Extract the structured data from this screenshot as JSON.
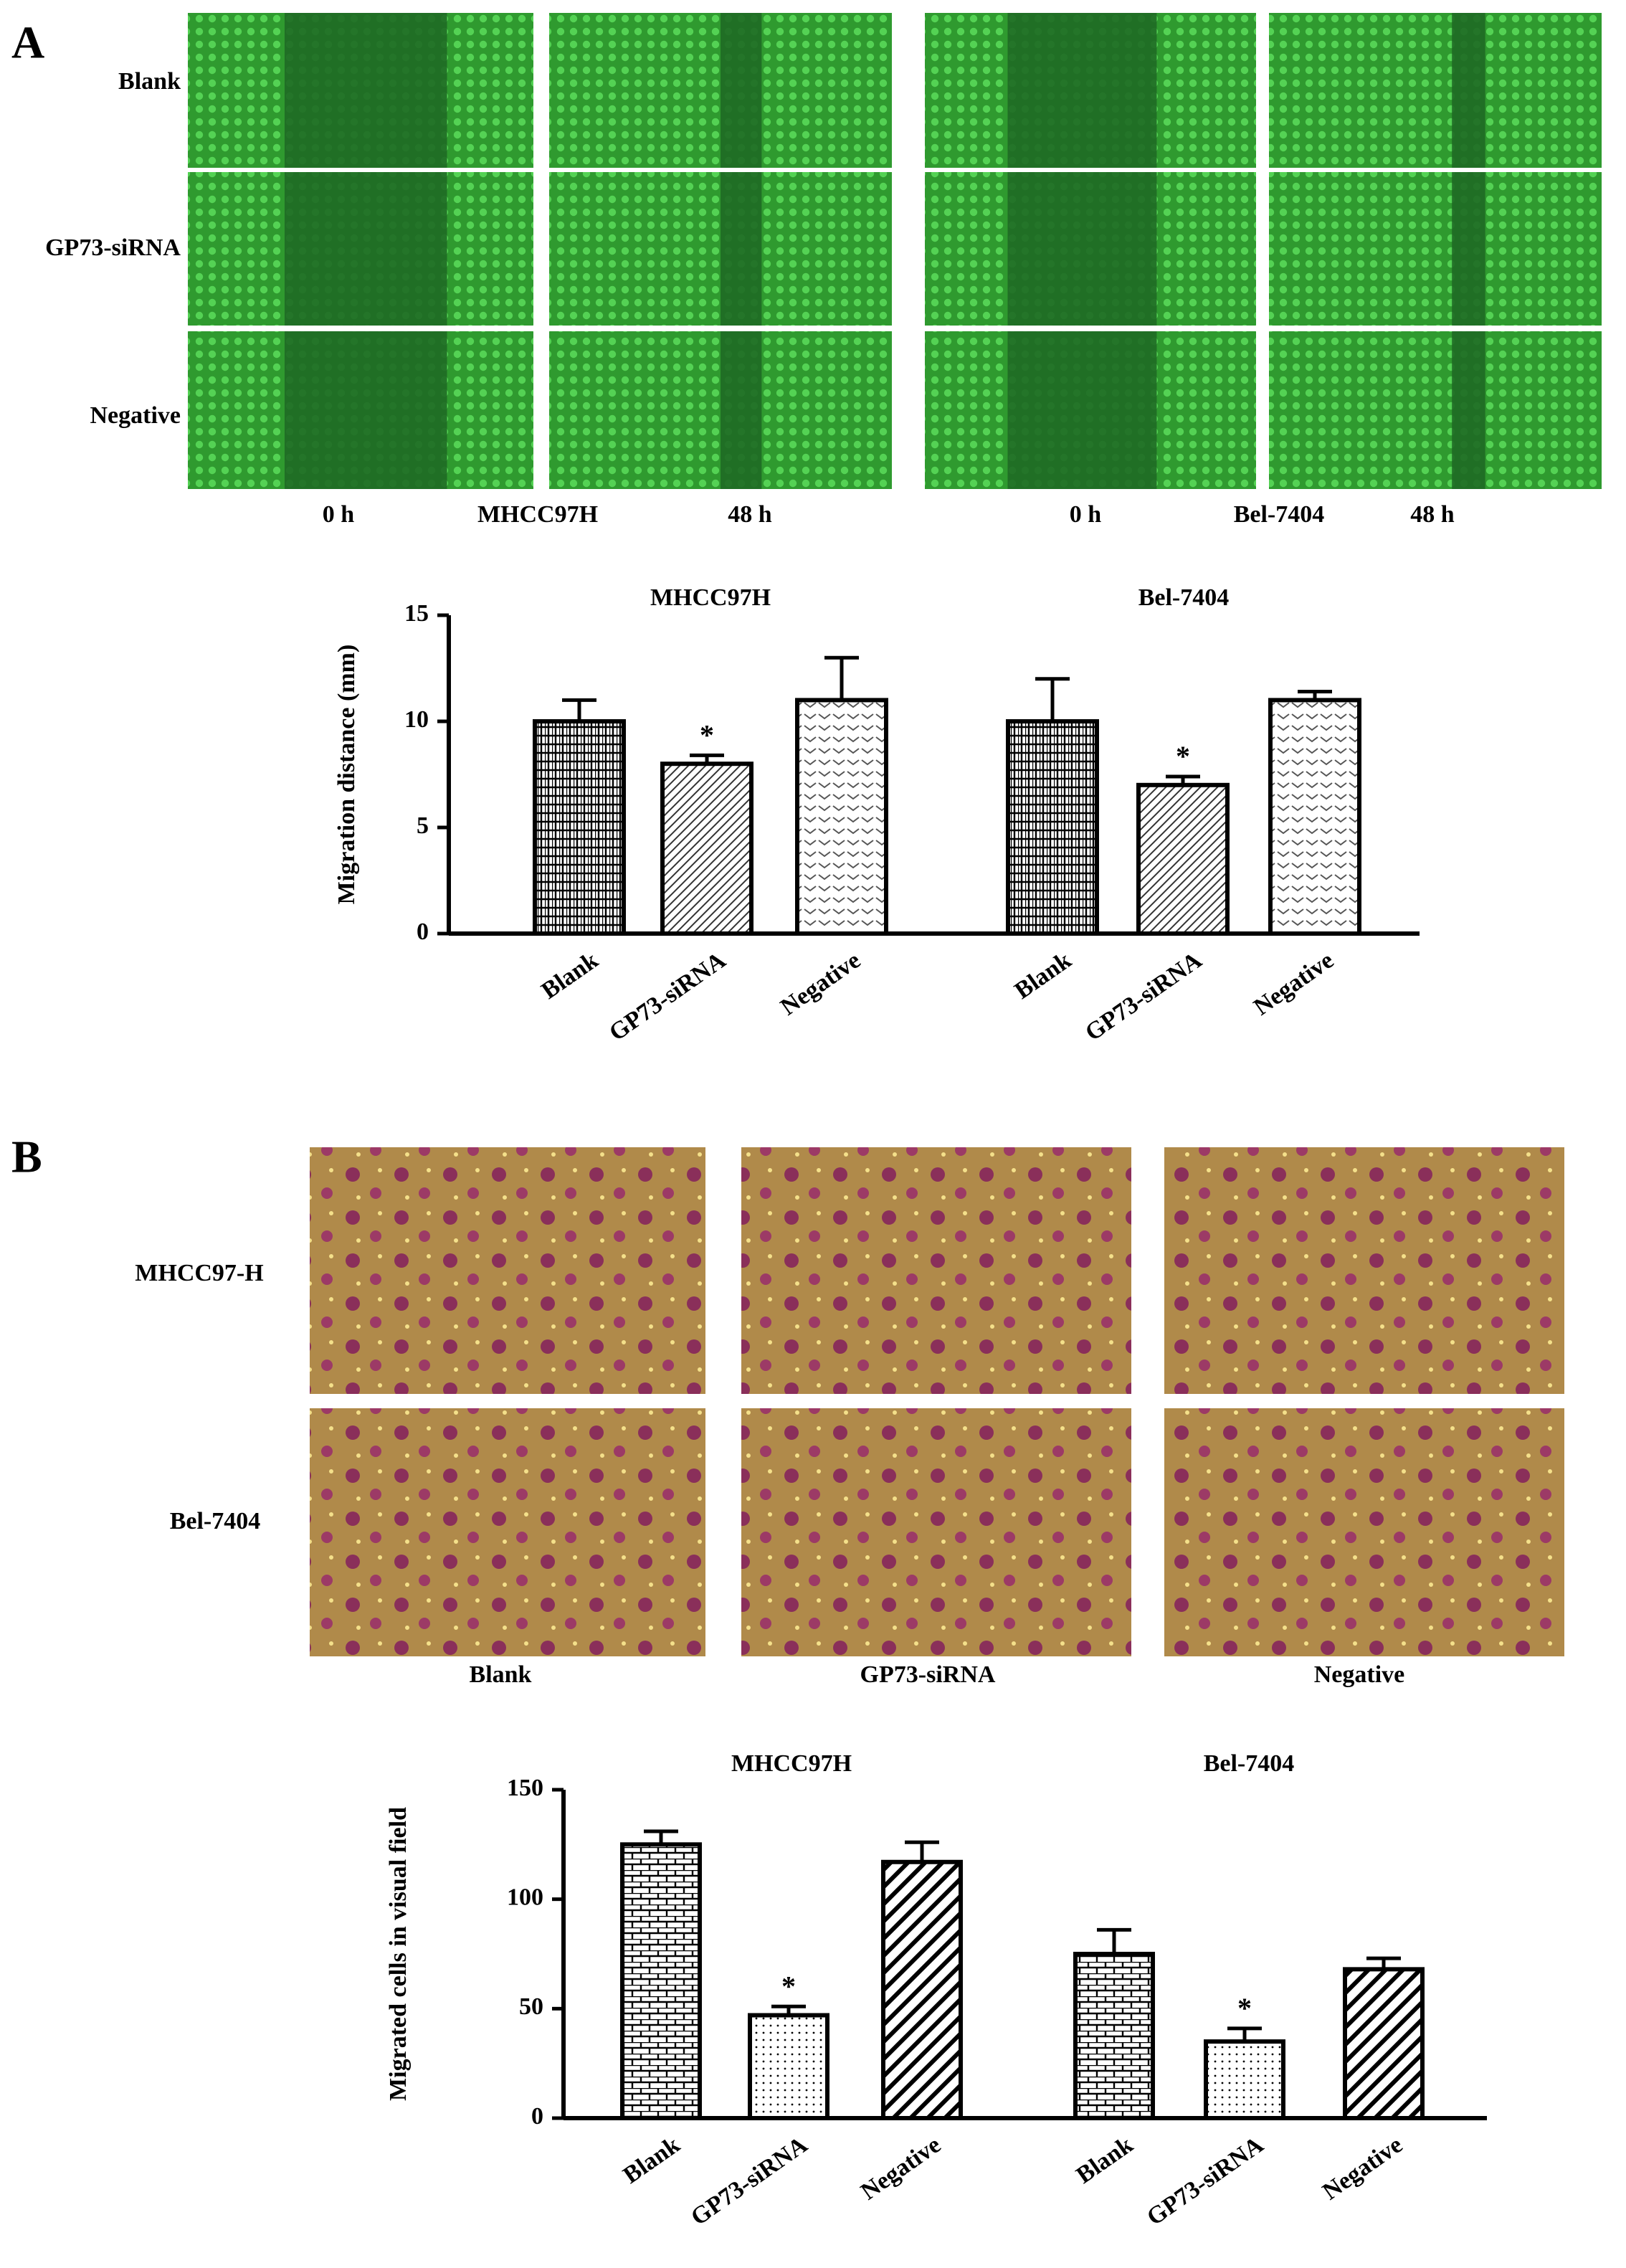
{
  "figure": {
    "panel_a": {
      "label": "A",
      "row_labels": [
        "Blank",
        "GP73-siRNA",
        "Negative"
      ],
      "column_labels": [
        "0 h",
        "MHCC97H",
        "48 h",
        "0 h",
        "Bel-7404",
        "48 h"
      ]
    },
    "panel_b": {
      "label": "B",
      "row_labels": [
        "MHCC97-H",
        "Bel-7404"
      ],
      "column_labels": [
        "Blank",
        "GP73-siRNA",
        "Negative"
      ]
    }
  },
  "chart_data": [
    {
      "type": "bar",
      "y_label": "Migration distance (mm)",
      "group_labels": [
        "MHCC97H",
        "Bel-7404"
      ],
      "categories": [
        "Blank",
        "GP73-siRNA",
        "Negative",
        "Blank",
        "GP73-siRNA",
        "Negative"
      ],
      "values": [
        10,
        8,
        11,
        10,
        7,
        11
      ],
      "errors": [
        1,
        0.4,
        2,
        2,
        0.4,
        0.4
      ],
      "value_annotations": [
        null,
        "*",
        null,
        null,
        "*",
        null
      ],
      "color": "#000000",
      "ylim": [
        0,
        15
      ],
      "yticks": [
        0,
        5,
        10,
        15
      ],
      "grid": false
    },
    {
      "type": "bar",
      "y_label": "Migrated cells in visual field",
      "group_labels": [
        "MHCC97H",
        "Bel-7404"
      ],
      "categories": [
        "Blank",
        "GP73-siRNA",
        "Negative",
        "Blank",
        "GP73-siRNA",
        "Negative"
      ],
      "values": [
        125,
        47,
        117,
        75,
        35,
        68
      ],
      "errors": [
        6,
        4,
        9,
        11,
        6,
        5
      ],
      "value_annotations": [
        null,
        "*",
        null,
        null,
        "*",
        null
      ],
      "color": "#000000",
      "ylim": [
        0,
        150
      ],
      "yticks": [
        0,
        50,
        100,
        150
      ],
      "grid": false
    }
  ]
}
